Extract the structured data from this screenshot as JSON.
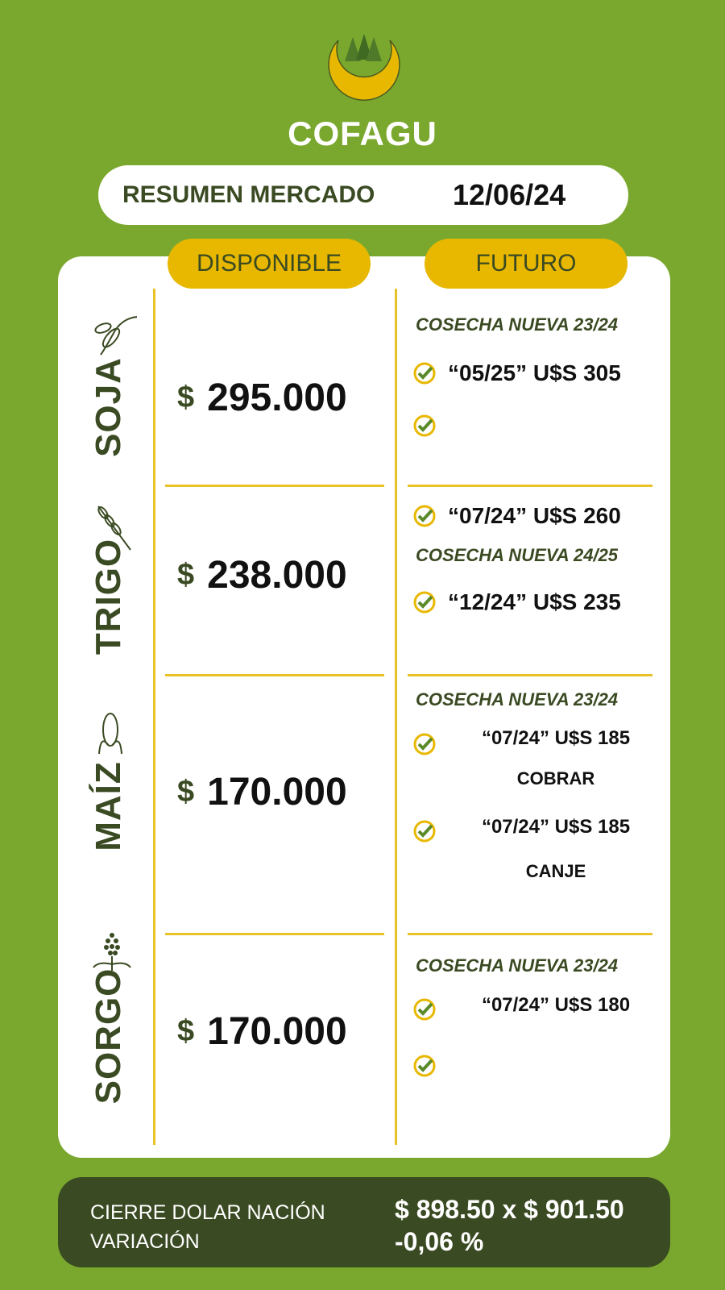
{
  "brand": {
    "name": "COFAGU",
    "colors": {
      "green": "#7aa82e",
      "dark": "#3a4a22",
      "yellow": "#e8b800"
    }
  },
  "header": {
    "title": "RESUMEN MERCADO",
    "date": "12/06/24"
  },
  "columns": {
    "disponible": "DISPONIBLE",
    "futuro": "FUTURO"
  },
  "crops": [
    {
      "name": "SOJA",
      "icon": "soybean-icon",
      "currency": "$",
      "price": "295.000",
      "futuro": {
        "harvest": "COSECHA NUEVA 23/24",
        "items": [
          "“05/25” U$S 305",
          ""
        ]
      }
    },
    {
      "name": "TRIGO",
      "icon": "wheat-icon",
      "currency": "$",
      "price": "238.000",
      "futuro": {
        "first": "“07/24” U$S 260",
        "harvest": "COSECHA NUEVA 24/25",
        "items": [
          "“12/24” U$S 235"
        ]
      }
    },
    {
      "name": "MAÍZ",
      "icon": "corn-icon",
      "currency": "$",
      "price": "170.000",
      "futuro": {
        "harvest": "COSECHA NUEVA 23/24",
        "items": [
          "“07/24” U$S 185",
          "“07/24” U$S 185"
        ],
        "notes": [
          "COBRAR",
          "CANJE"
        ]
      }
    },
    {
      "name": "SORGO",
      "icon": "sorghum-icon",
      "currency": "$",
      "price": "170.000",
      "futuro": {
        "harvest": "COSECHA NUEVA 23/24",
        "items": [
          "“07/24” U$S 180",
          ""
        ]
      }
    }
  ],
  "footer": {
    "dollar_label": "CIERRE DOLAR NACIÓN",
    "dollar_value": "$ 898.50 x $ 901.50",
    "variation_label": "VARIACIÓN",
    "variation_value": "-0,06 %"
  }
}
